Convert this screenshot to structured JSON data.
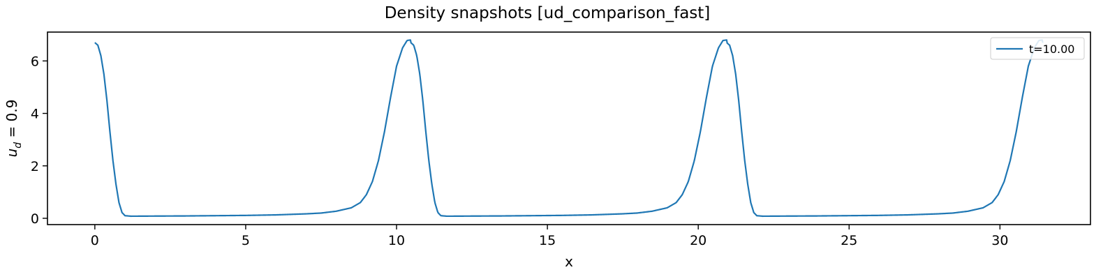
{
  "chart_data": {
    "type": "line",
    "title": "Density snapshots  [ud_comparison_fast]",
    "xlabel": "x",
    "ylabel_main": "u",
    "ylabel_sub": "d",
    "ylabel_rest": " = 0.9",
    "xlim": [
      -1.57,
      33.0
    ],
    "ylim": [
      -0.24,
      7.1
    ],
    "x_ticks": [
      0,
      5,
      10,
      15,
      20,
      25,
      30
    ],
    "y_ticks": [
      0,
      2,
      4,
      6
    ],
    "x_tick_labels": [
      "0",
      "5",
      "10",
      "15",
      "20",
      "25",
      "30"
    ],
    "y_tick_labels": [
      "0",
      "2",
      "4",
      "6"
    ],
    "grid": false,
    "legend_position": "top-right",
    "series": [
      {
        "name": "t=10.00",
        "color": "#1f77b4",
        "period": 10.47,
        "x_end": 31.42,
        "profile": [
          [
            0,
            6.7
          ],
          [
            0.1,
            6.6
          ],
          [
            0.2,
            6.2
          ],
          [
            0.3,
            5.5
          ],
          [
            0.4,
            4.5
          ],
          [
            0.5,
            3.3
          ],
          [
            0.6,
            2.2
          ],
          [
            0.7,
            1.3
          ],
          [
            0.8,
            0.6
          ],
          [
            0.9,
            0.22
          ],
          [
            1.0,
            0.1
          ],
          [
            1.2,
            0.08
          ],
          [
            2.0,
            0.085
          ],
          [
            3.0,
            0.09
          ],
          [
            4.0,
            0.1
          ],
          [
            5.0,
            0.11
          ],
          [
            6.0,
            0.13
          ],
          [
            7.0,
            0.17
          ],
          [
            7.5,
            0.2
          ],
          [
            8.0,
            0.27
          ],
          [
            8.5,
            0.4
          ],
          [
            8.8,
            0.6
          ],
          [
            9.0,
            0.9
          ],
          [
            9.2,
            1.4
          ],
          [
            9.4,
            2.2
          ],
          [
            9.6,
            3.3
          ],
          [
            9.8,
            4.6
          ],
          [
            10.0,
            5.8
          ],
          [
            10.2,
            6.5
          ],
          [
            10.35,
            6.78
          ],
          [
            10.47,
            6.8
          ]
        ]
      }
    ]
  }
}
